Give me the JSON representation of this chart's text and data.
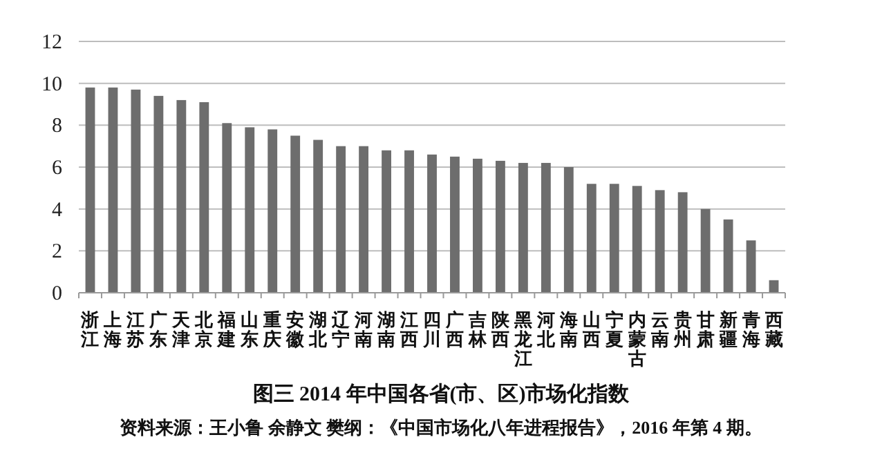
{
  "chart_data": {
    "type": "bar",
    "title": "图三  2014 年中国各省(市、区)市场化指数",
    "annotations": [
      "资料来源：王小鲁 余静文 樊纲：《中国市场化八年进程报告》，2016 年第 4 期。"
    ],
    "categories": [
      "浙江",
      "上海",
      "江苏",
      "广东",
      "天津",
      "北京",
      "福建",
      "山东",
      "重庆",
      "安徽",
      "湖北",
      "辽宁",
      "河南",
      "湖南",
      "江西",
      "四川",
      "广西",
      "吉林",
      "陕西",
      "黑龙江",
      "河北",
      "海南",
      "山西",
      "宁夏",
      "内蒙古",
      "云南",
      "贵州",
      "甘肃",
      "新疆",
      "青海",
      "西藏"
    ],
    "values": [
      9.8,
      9.8,
      9.7,
      9.4,
      9.2,
      9.1,
      8.1,
      7.9,
      7.8,
      7.5,
      7.3,
      7.0,
      7.0,
      6.8,
      6.8,
      6.6,
      6.5,
      6.4,
      6.3,
      6.2,
      6.2,
      6.0,
      5.2,
      5.2,
      5.1,
      4.9,
      4.8,
      4.0,
      3.5,
      2.5,
      0.6
    ],
    "color": "#6d6d6d",
    "ylim": [
      0,
      12
    ],
    "yticks": [
      0,
      2,
      4,
      6,
      8,
      10,
      12
    ],
    "grid": "y"
  }
}
